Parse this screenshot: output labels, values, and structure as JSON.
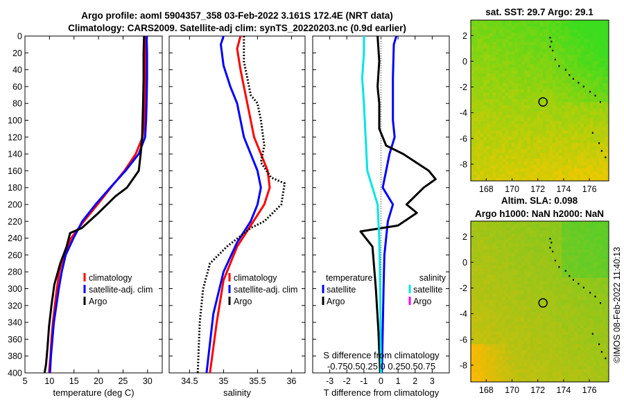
{
  "header": {
    "title_line1": "Argo profile: aoml 5904357_358 03-Feb-2022 3.161S 172.4E (NRT data)",
    "title_line2": "Climatology: CARS2009. Satellite-adj clim: synTS_20220203.nc (0.9d earlier)",
    "timestamp": "©IMOS 08-Feb-2022 11:40:13"
  },
  "colors": {
    "climatology": "#ff0000",
    "satellite": "#0000ff",
    "argo": "#000000",
    "sal_satellite": "#00e5e5",
    "sal_argo": "#ff00ff"
  },
  "chart_data": [
    {
      "id": "temperature",
      "type": "line",
      "xlabel": "temperature (deg C)",
      "ylabel": "",
      "xlim": [
        5,
        33
      ],
      "ylim": [
        0,
        400
      ],
      "y_inverted": true,
      "xticks": [
        "5",
        "10",
        "15",
        "20",
        "25",
        "30"
      ],
      "yticks": [
        "0",
        "20",
        "40",
        "60",
        "80",
        "100",
        "120",
        "140",
        "160",
        "180",
        "200",
        "220",
        "240",
        "260",
        "280",
        "300",
        "320",
        "340",
        "360",
        "380",
        "400"
      ],
      "legend": [
        "climatology",
        "satellite-adj. clim",
        "Argo"
      ],
      "series": [
        {
          "name": "climatology",
          "color": "climatology",
          "style": "solid",
          "points": [
            [
              29.6,
              0
            ],
            [
              29.6,
              20
            ],
            [
              29.6,
              50
            ],
            [
              29.5,
              80
            ],
            [
              29.4,
              100
            ],
            [
              29.0,
              120
            ],
            [
              27.6,
              140
            ],
            [
              25.3,
              160
            ],
            [
              22.5,
              180
            ],
            [
              19.8,
              200
            ],
            [
              17.0,
              220
            ],
            [
              14.4,
              240
            ],
            [
              12.9,
              260
            ],
            [
              12.0,
              280
            ],
            [
              11.5,
              300
            ],
            [
              11.1,
              320
            ],
            [
              10.7,
              340
            ],
            [
              10.4,
              360
            ],
            [
              10.2,
              380
            ],
            [
              9.9,
              400
            ]
          ]
        },
        {
          "name": "satellite-adj. clim",
          "color": "satellite",
          "style": "solid",
          "points": [
            [
              29.8,
              0
            ],
            [
              29.9,
              20
            ],
            [
              29.9,
              50
            ],
            [
              29.8,
              80
            ],
            [
              29.7,
              100
            ],
            [
              29.5,
              120
            ],
            [
              28.2,
              140
            ],
            [
              25.5,
              160
            ],
            [
              22.4,
              180
            ],
            [
              19.4,
              200
            ],
            [
              16.7,
              220
            ],
            [
              14.9,
              240
            ],
            [
              13.3,
              260
            ],
            [
              12.5,
              280
            ],
            [
              11.9,
              300
            ],
            [
              11.4,
              320
            ],
            [
              10.9,
              340
            ],
            [
              10.6,
              360
            ],
            [
              10.3,
              380
            ],
            [
              10.1,
              400
            ]
          ]
        },
        {
          "name": "Argo",
          "color": "argo",
          "style": "solid",
          "points": [
            [
              29.3,
              0
            ],
            [
              29.2,
              20
            ],
            [
              29.2,
              50
            ],
            [
              29.1,
              80
            ],
            [
              29.0,
              100
            ],
            [
              28.9,
              120
            ],
            [
              28.6,
              140
            ],
            [
              28.2,
              160
            ],
            [
              25.8,
              180
            ],
            [
              23.5,
              190
            ],
            [
              20.0,
              210
            ],
            [
              16.6,
              228
            ],
            [
              14.2,
              234
            ],
            [
              13.5,
              250
            ],
            [
              12.2,
              270
            ],
            [
              11.0,
              295
            ],
            [
              10.4,
              320
            ],
            [
              9.9,
              345
            ],
            [
              9.6,
              370
            ],
            [
              9.3,
              390
            ],
            [
              9.0,
              400
            ]
          ]
        }
      ]
    },
    {
      "id": "salinity",
      "type": "line",
      "xlabel": "salinity",
      "ylabel": "",
      "xlim": [
        34.2,
        36.2
      ],
      "ylim": [
        0,
        400
      ],
      "y_inverted": true,
      "xticks": [
        "34.5",
        "35",
        "35.5",
        "36"
      ],
      "legend": [
        "climatology",
        "satellite-adj. clim",
        "Argo"
      ],
      "series": [
        {
          "name": "climatology",
          "color": "climatology",
          "style": "solid",
          "points": [
            [
              35.25,
              0
            ],
            [
              35.2,
              15
            ],
            [
              35.25,
              40
            ],
            [
              35.3,
              60
            ],
            [
              35.35,
              80
            ],
            [
              35.45,
              120
            ],
            [
              35.55,
              140
            ],
            [
              35.65,
              160
            ],
            [
              35.68,
              180
            ],
            [
              35.6,
              200
            ],
            [
              35.4,
              225
            ],
            [
              35.2,
              250
            ],
            [
              35.0,
              290
            ],
            [
              34.9,
              340
            ],
            [
              34.8,
              400
            ]
          ]
        },
        {
          "name": "satellite-adj. clim",
          "color": "satellite",
          "style": "solid",
          "points": [
            [
              35.0,
              0
            ],
            [
              34.96,
              10
            ],
            [
              35.0,
              35
            ],
            [
              35.1,
              60
            ],
            [
              35.2,
              80
            ],
            [
              35.3,
              120
            ],
            [
              35.4,
              140
            ],
            [
              35.5,
              160
            ],
            [
              35.55,
              180
            ],
            [
              35.5,
              200
            ],
            [
              35.4,
              220
            ],
            [
              35.2,
              245
            ],
            [
              35.0,
              280
            ],
            [
              34.85,
              330
            ],
            [
              34.75,
              400
            ]
          ]
        },
        {
          "name": "Argo",
          "color": "argo",
          "style": "dotted",
          "points": [
            [
              35.3,
              0
            ],
            [
              35.3,
              30
            ],
            [
              35.35,
              50
            ],
            [
              35.4,
              70
            ],
            [
              35.5,
              80
            ],
            [
              35.55,
              100
            ],
            [
              35.6,
              130
            ],
            [
              35.55,
              150
            ],
            [
              35.7,
              168
            ],
            [
              35.9,
              175
            ],
            [
              35.85,
              200
            ],
            [
              35.6,
              220
            ],
            [
              35.4,
              228
            ],
            [
              35.05,
              250
            ],
            [
              34.8,
              270
            ],
            [
              34.7,
              300
            ],
            [
              34.65,
              340
            ],
            [
              34.62,
              400
            ]
          ]
        }
      ]
    },
    {
      "id": "difference",
      "type": "line",
      "xlabel": "T difference from climatology",
      "top_label": "S difference from climatology",
      "top_ticks": "-0.750.50.25 0 0.250.50.75",
      "xlim": [
        -4,
        4
      ],
      "ylim": [
        0,
        400
      ],
      "y_inverted": true,
      "xticks": [
        "-3",
        "-2",
        "-1",
        "0",
        "1",
        "2",
        "3"
      ],
      "legend_temperature_title": "temperature",
      "legend_salinity_title": "salinity",
      "legend_temperature": [
        "satellite",
        "Argo"
      ],
      "legend_salinity": [
        "satellite",
        "Argo"
      ],
      "zero_line": 0,
      "series": [
        {
          "name": "T satellite",
          "color": "satellite",
          "style": "solid",
          "points": [
            [
              0.9,
              0
            ],
            [
              0.75,
              10
            ],
            [
              0.7,
              50
            ],
            [
              0.7,
              100
            ],
            [
              0.8,
              120
            ],
            [
              0.5,
              140
            ],
            [
              0.3,
              160
            ],
            [
              0.1,
              180
            ],
            [
              0.7,
              200
            ],
            [
              0.4,
              220
            ],
            [
              0.2,
              260
            ],
            [
              0.15,
              300
            ],
            [
              0.1,
              350
            ],
            [
              0.05,
              400
            ]
          ]
        },
        {
          "name": "T Argo",
          "color": "argo",
          "style": "solid",
          "points": [
            [
              -0.2,
              0
            ],
            [
              -0.1,
              30
            ],
            [
              -0.2,
              60
            ],
            [
              -0.1,
              80
            ],
            [
              -0.1,
              110
            ],
            [
              0.3,
              130
            ],
            [
              1.3,
              140
            ],
            [
              2.8,
              160
            ],
            [
              3.2,
              170
            ],
            [
              2.5,
              180
            ],
            [
              1.5,
              200
            ],
            [
              2.1,
              210
            ],
            [
              1.0,
              225
            ],
            [
              -1.2,
              232
            ],
            [
              -0.5,
              250
            ],
            [
              -0.3,
              300
            ],
            [
              -0.15,
              350
            ],
            [
              -0.05,
              400
            ]
          ]
        },
        {
          "name": "S satellite",
          "color": "sal_satellite",
          "style": "solid",
          "points": [
            [
              -1.0,
              0
            ],
            [
              -1.0,
              20
            ],
            [
              -1.1,
              50
            ],
            [
              -1.0,
              80
            ],
            [
              -0.9,
              120
            ],
            [
              -0.8,
              160
            ],
            [
              -0.2,
              200
            ],
            [
              -0.1,
              240
            ],
            [
              -0.05,
              300
            ],
            [
              0,
              400
            ]
          ]
        }
      ]
    },
    {
      "id": "sst_map",
      "type": "heatmap",
      "title": "sat. SST: 29.7  Argo: 29.1",
      "xticks": [
        "168",
        "170",
        "172",
        "174",
        "176"
      ],
      "yticks": [
        "2",
        "0",
        "-2",
        "-4",
        "-6",
        "-8"
      ],
      "marker_lon": 172.4,
      "marker_lat": -3.161
    },
    {
      "id": "sla_map",
      "type": "heatmap",
      "title_line1": "Altim. SLA: 0.098",
      "title_line2": "Argo h1000: NaN h2000: NaN",
      "xticks": [
        "168",
        "170",
        "172",
        "174",
        "176"
      ],
      "yticks": [
        "2",
        "0",
        "-2",
        "-4",
        "-6",
        "-8"
      ],
      "marker_lon": 172.4,
      "marker_lat": -3.161
    }
  ]
}
